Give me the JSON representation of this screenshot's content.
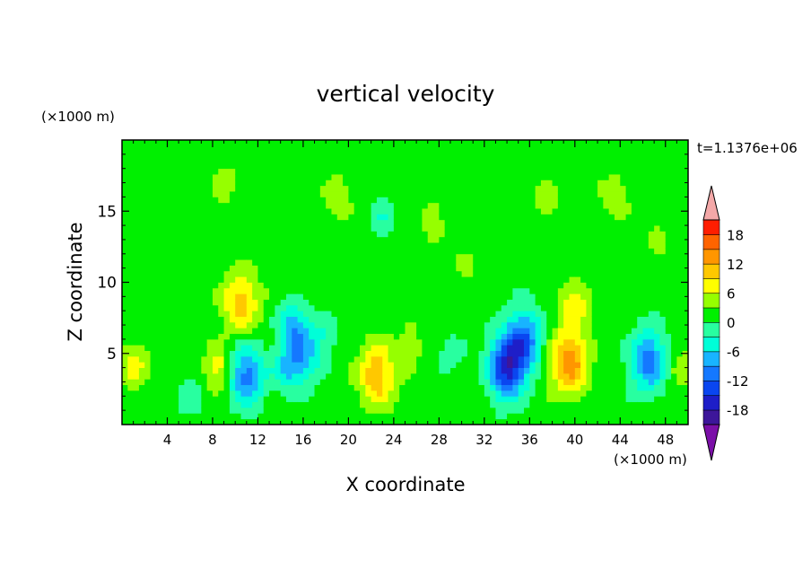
{
  "chart_data": {
    "type": "heatmap",
    "title": "vertical velocity",
    "xlabel": "X coordinate",
    "ylabel": "Z coordinate",
    "x_unit": "(×1000 m)",
    "y_unit": "(×1000 m)",
    "time_label": "t=1.1376e+06",
    "xlim": [
      0,
      50
    ],
    "ylim": [
      0,
      20
    ],
    "x_ticks": [
      4,
      8,
      12,
      16,
      20,
      24,
      28,
      32,
      36,
      40,
      44,
      48
    ],
    "y_ticks": [
      5,
      10,
      15
    ],
    "colorbar": {
      "levels": [
        -21,
        -18,
        -15,
        -12,
        -9,
        -6,
        -3,
        0,
        3,
        6,
        9,
        12,
        15,
        18,
        21
      ],
      "labels": [
        18,
        12,
        6,
        0,
        -6,
        -12,
        -18
      ],
      "colors": [
        "#7b0fa8",
        "#3d169a",
        "#1e1ec8",
        "#0a46f0",
        "#1478ff",
        "#18b4ff",
        "#00ffd8",
        "#28ffa0",
        "#00f000",
        "#96ff00",
        "#ffff00",
        "#ffc800",
        "#ff9600",
        "#ff6400",
        "#ff1e00",
        "#ff0000",
        "#f4a8a8"
      ]
    },
    "features": [
      {
        "x": 1,
        "z": 4.2,
        "w": 6
      },
      {
        "x": 4,
        "z": 3.5,
        "w": 2
      },
      {
        "x": 6,
        "z": 2,
        "w": -4
      },
      {
        "x": 8.5,
        "z": 4,
        "w": 7
      },
      {
        "x": 10.5,
        "z": 8.5,
        "w": 9
      },
      {
        "x": 11,
        "z": 3.5,
        "w": -12
      },
      {
        "x": 14.5,
        "z": 4,
        "w": -6
      },
      {
        "x": 16,
        "z": 5,
        "w": -9
      },
      {
        "x": 15,
        "z": 7,
        "w": -8
      },
      {
        "x": 18,
        "z": 6.5,
        "w": -3
      },
      {
        "x": 22.5,
        "z": 3.5,
        "w": 10
      },
      {
        "x": 25.5,
        "z": 5.5,
        "w": 3
      },
      {
        "x": 29,
        "z": 5,
        "w": -3
      },
      {
        "x": 34,
        "z": 4,
        "w": -17
      },
      {
        "x": 35.5,
        "z": 6,
        "w": -12
      },
      {
        "x": 39.5,
        "z": 4.5,
        "w": 13
      },
      {
        "x": 40,
        "z": 8.5,
        "w": 7
      },
      {
        "x": 46.5,
        "z": 4.5,
        "w": -12
      },
      {
        "x": 49.5,
        "z": 4,
        "w": 4
      },
      {
        "x": 9,
        "z": 17,
        "w": 3
      },
      {
        "x": 19,
        "z": 16,
        "w": 4
      },
      {
        "x": 23,
        "z": 14.5,
        "w": -4
      },
      {
        "x": 27.5,
        "z": 14.5,
        "w": 3
      },
      {
        "x": 30.5,
        "z": 11.5,
        "w": 2
      },
      {
        "x": 37.5,
        "z": 15.5,
        "w": 3
      },
      {
        "x": 43.5,
        "z": 16,
        "w": 4
      },
      {
        "x": 47.5,
        "z": 13,
        "w": 2
      }
    ]
  }
}
